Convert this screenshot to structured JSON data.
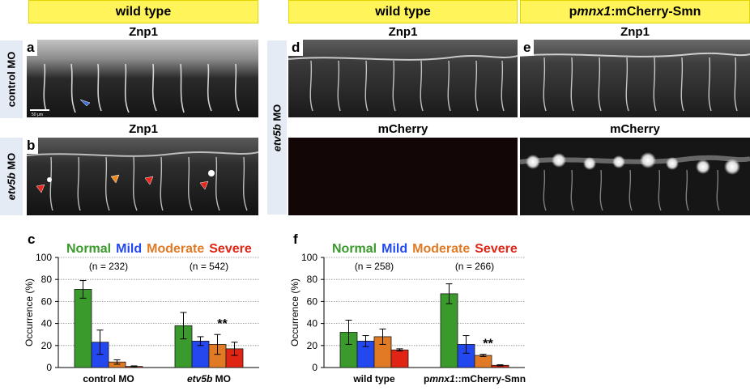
{
  "banners": {
    "left": "wild type",
    "mid": "wild type",
    "right_prefix": "p",
    "right_italic": "mnx1",
    "right_suffix": ":mCherry-Smn"
  },
  "side_labels": {
    "control": "control MO",
    "etv_italic": "etv5b",
    "etv_suffix": " MO"
  },
  "panels": {
    "a": {
      "letter": "a",
      "title": "Znp1",
      "scale_bar": "50 μm"
    },
    "b": {
      "letter": "b",
      "title": "Znp1"
    },
    "d": {
      "letter": "d",
      "title": "Znp1"
    },
    "e": {
      "letter": "e",
      "title": "Znp1"
    },
    "d2": {
      "title": "mCherry"
    },
    "e2": {
      "title": "mCherry"
    }
  },
  "legend": [
    "Normal",
    "Mild",
    "Moderate",
    "Severe"
  ],
  "colors": {
    "Normal": "#3a9a2c",
    "Mild": "#2348f0",
    "Moderate": "#e07a25",
    "Severe": "#e02515",
    "banner": "#fff45a",
    "side": "#e4ebf5",
    "arrow_blue": "#3e6fd8",
    "arrow_orange": "#f08a20",
    "arrow_red": "#e8281c"
  },
  "chart_data": [
    {
      "type": "bar",
      "panel": "c",
      "ylabel": "Occurrence (%)",
      "ylim": [
        0,
        100
      ],
      "yticks": [
        0,
        20,
        40,
        60,
        80,
        100
      ],
      "grid": true,
      "legend_position": "top",
      "categories": [
        "control MO",
        "etv5b MO"
      ],
      "category_labels": [
        {
          "prefix": "",
          "italic": "",
          "suffix": "control MO"
        },
        {
          "prefix": "",
          "italic": "etv5b",
          "suffix": " MO"
        }
      ],
      "n_labels": [
        "(n = 232)",
        "(n = 542)"
      ],
      "series": [
        {
          "name": "Normal",
          "values": [
            71,
            38
          ],
          "errors": [
            8,
            12
          ]
        },
        {
          "name": "Mild",
          "values": [
            23,
            24
          ],
          "errors": [
            11,
            4
          ]
        },
        {
          "name": "Moderate",
          "values": [
            5,
            21
          ],
          "errors": [
            2,
            9
          ]
        },
        {
          "name": "Severe",
          "values": [
            1,
            17
          ],
          "errors": [
            0.5,
            6
          ]
        }
      ],
      "annotations": [
        {
          "category": 1,
          "series": "Moderate",
          "text": "**"
        }
      ]
    },
    {
      "type": "bar",
      "panel": "f",
      "ylabel": "Occurrence (%)",
      "ylim": [
        0,
        100
      ],
      "yticks": [
        0,
        20,
        40,
        60,
        80,
        100
      ],
      "grid": true,
      "legend_position": "top",
      "categories": [
        "wild type",
        "pmnx1::mCherry-Smn"
      ],
      "category_labels": [
        {
          "prefix": "",
          "italic": "",
          "suffix": "wild type"
        },
        {
          "prefix": "p",
          "italic": "mnx1",
          "suffix": "::mCherry-Smn"
        }
      ],
      "n_labels": [
        "(n = 258)",
        "(n = 266)"
      ],
      "series": [
        {
          "name": "Normal",
          "values": [
            32,
            67
          ],
          "errors": [
            11,
            9
          ]
        },
        {
          "name": "Mild",
          "values": [
            24,
            21
          ],
          "errors": [
            5,
            8
          ]
        },
        {
          "name": "Moderate",
          "values": [
            28,
            11
          ],
          "errors": [
            7,
            1
          ]
        },
        {
          "name": "Severe",
          "values": [
            16,
            2
          ],
          "errors": [
            1,
            0.5
          ]
        }
      ],
      "annotations": [
        {
          "category": 1,
          "series": "Moderate",
          "text": "**"
        }
      ]
    }
  ]
}
